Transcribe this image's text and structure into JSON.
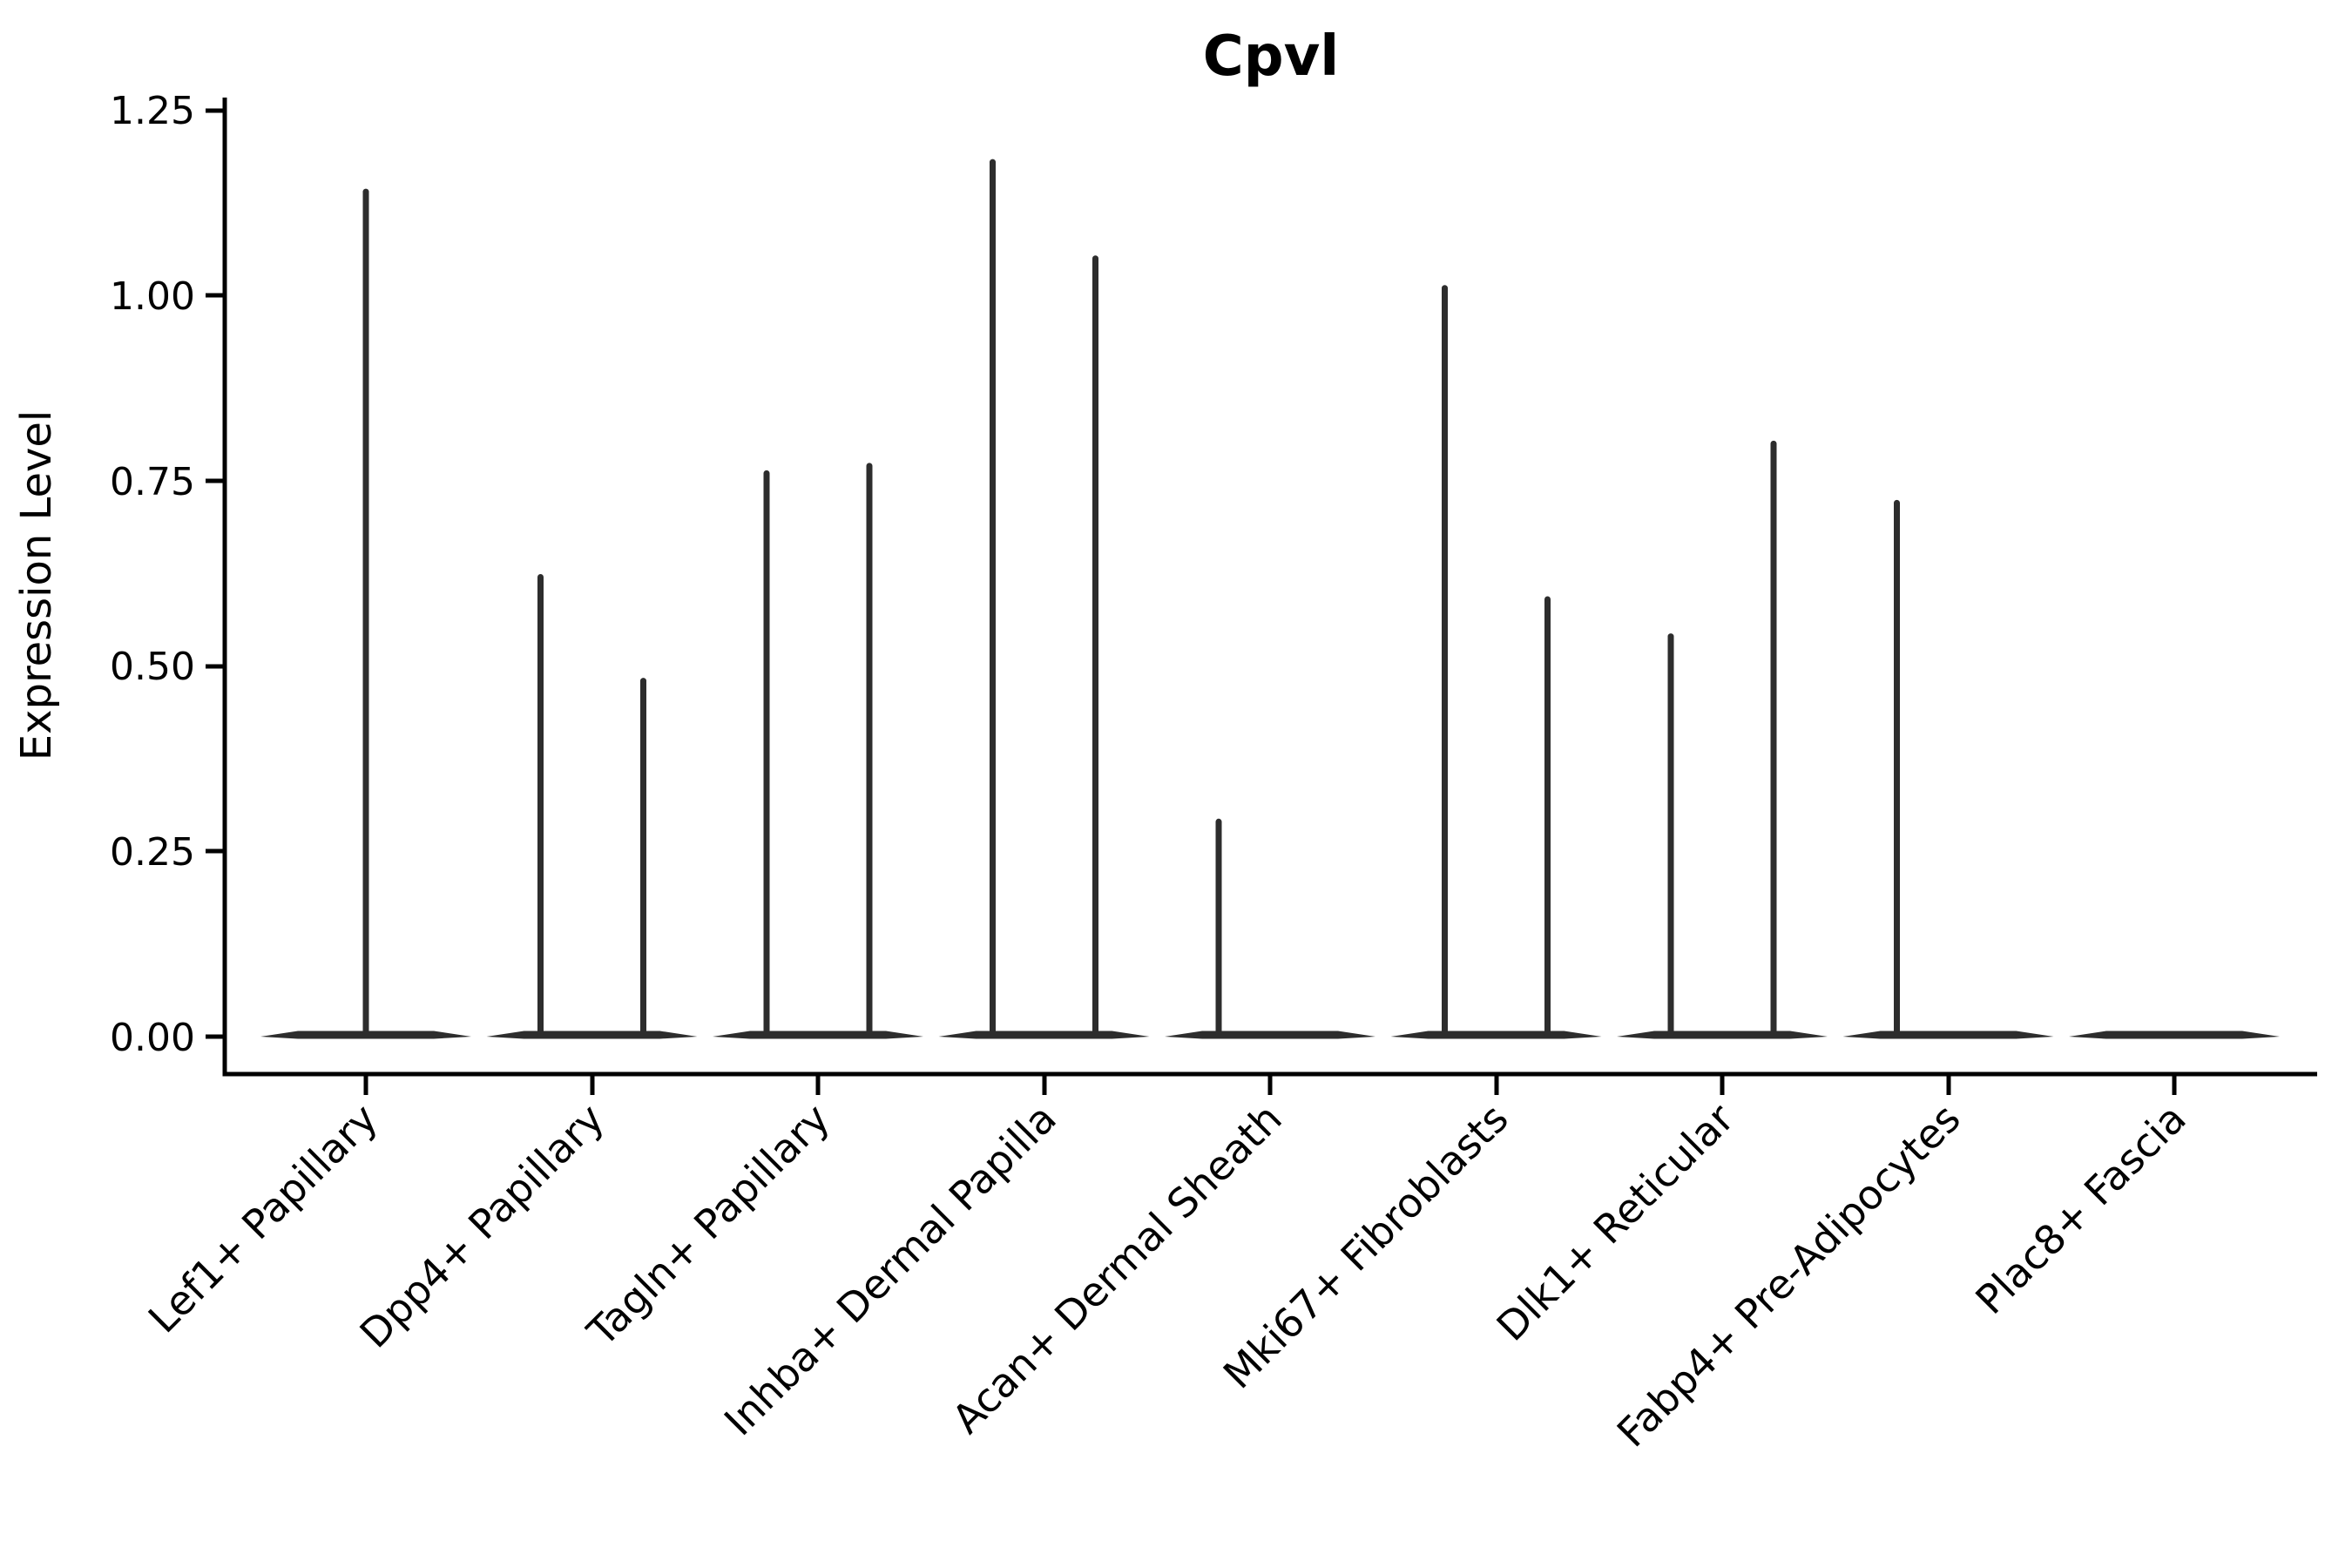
{
  "colors": {
    "violin": "#2d2d2d",
    "axis": "#000000",
    "text": "#000000",
    "background": "#ffffff"
  },
  "chart_data": {
    "type": "violin",
    "title": "Cpvl",
    "xlabel": "",
    "ylabel": "Expression Level",
    "ylim": [
      -0.05,
      1.27
    ],
    "grid": false,
    "legend": false,
    "x_tick_rotation": 45,
    "y_ticks": [
      0.0,
      0.25,
      0.5,
      0.75,
      1.0,
      1.25
    ],
    "y_tick_labels": [
      "0.00",
      "0.25",
      "0.50",
      "0.75",
      "1.00",
      "1.25"
    ],
    "categories": [
      {
        "label": "Lef1+ Papillary",
        "violins": [
          {
            "side": "center",
            "max": 1.14
          }
        ]
      },
      {
        "label": "Dpp4+ Papillary",
        "violins": [
          {
            "side": "left",
            "max": 0.62
          },
          {
            "side": "right",
            "max": 0.48
          }
        ]
      },
      {
        "label": "Tagln+ Papillary",
        "violins": [
          {
            "side": "left",
            "max": 0.76
          },
          {
            "side": "right",
            "max": 0.77
          }
        ]
      },
      {
        "label": "Inhba+ Dermal Papilla",
        "violins": [
          {
            "side": "left",
            "max": 1.18
          },
          {
            "side": "right",
            "max": 1.05
          }
        ]
      },
      {
        "label": "Acan+ Dermal Sheath",
        "violins": [
          {
            "side": "left",
            "max": 0.29
          }
        ]
      },
      {
        "label": "Mki67+ Fibroblasts",
        "violins": [
          {
            "side": "left",
            "max": 1.01
          },
          {
            "side": "right",
            "max": 0.59
          }
        ]
      },
      {
        "label": "Dlk1+ Reticular",
        "violins": [
          {
            "side": "left",
            "max": 0.54
          },
          {
            "side": "right",
            "max": 0.8
          }
        ]
      },
      {
        "label": "Fabp4+ Pre-Adipocytes",
        "violins": [
          {
            "side": "left",
            "max": 0.72
          }
        ]
      },
      {
        "label": "Plac8+ Fascia",
        "violins": []
      }
    ]
  }
}
